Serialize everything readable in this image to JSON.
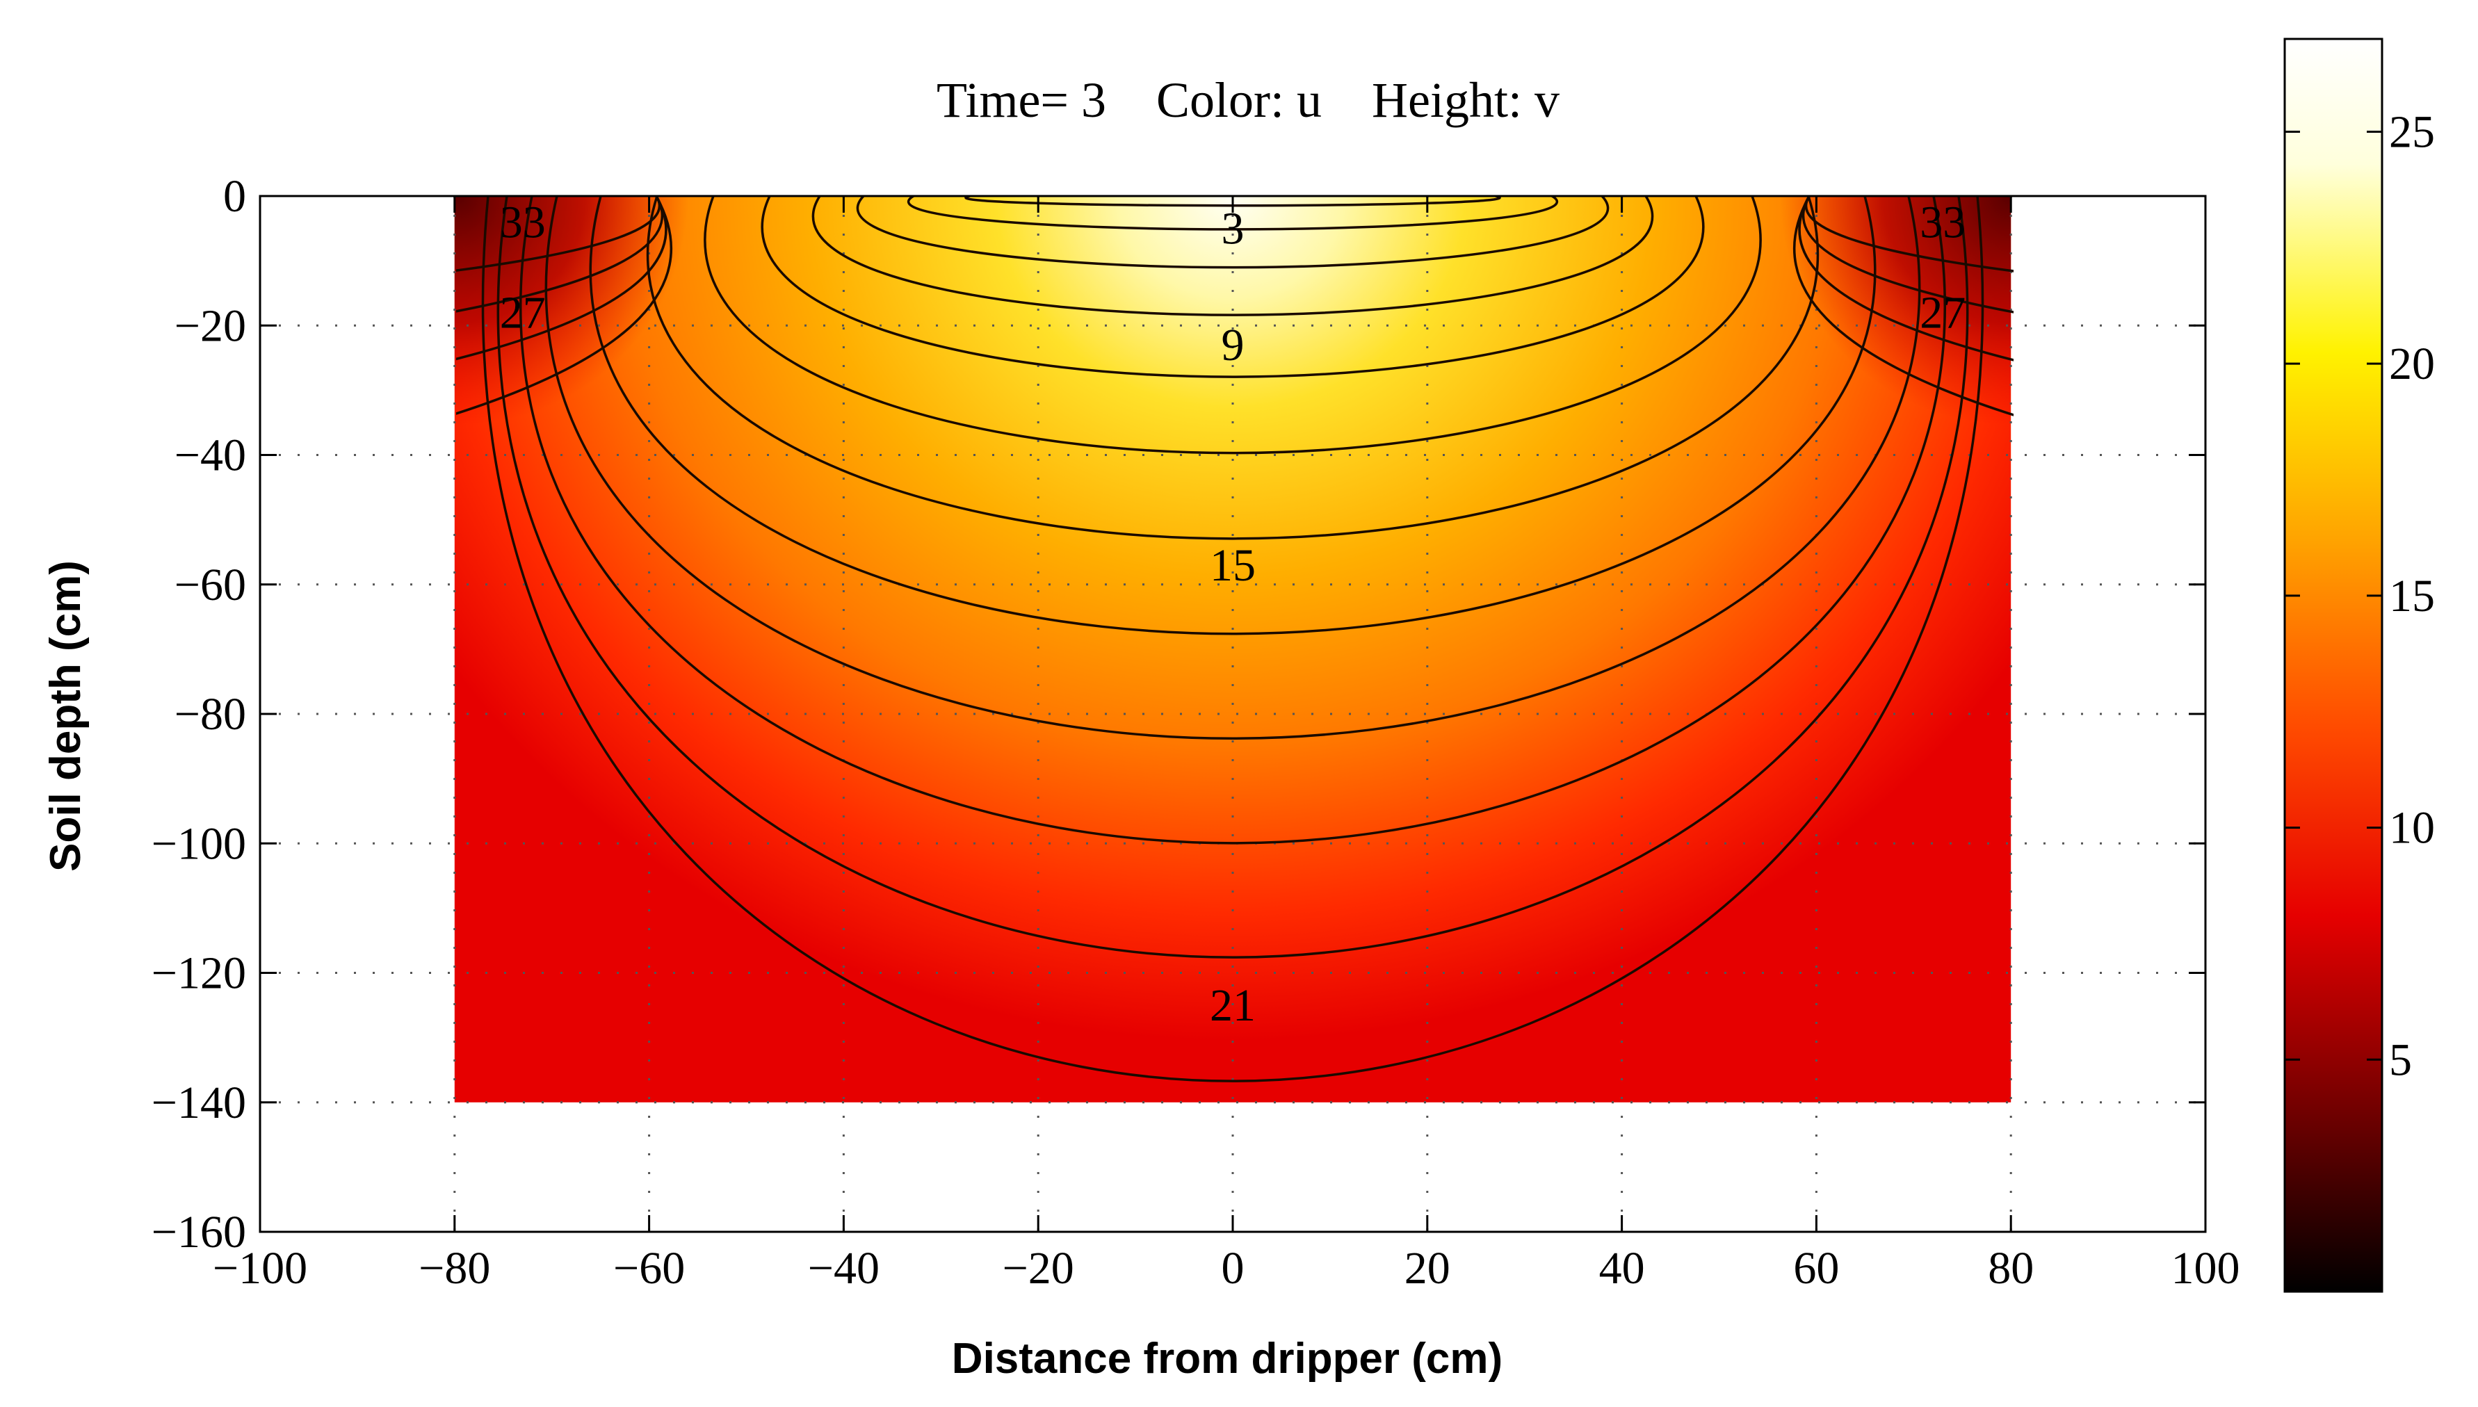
{
  "chart_data": {
    "type": "heatmap",
    "title": "Time= 3    Color: u    Height: v",
    "xlabel": "Distance from dripper (cm)",
    "ylabel": "Soil depth (cm)",
    "xlim": [
      -100,
      100
    ],
    "ylim": [
      -160,
      0
    ],
    "x_ticks": [
      "−100",
      "−80",
      "−60",
      "−40",
      "−20",
      "0",
      "20",
      "40",
      "60",
      "80",
      "100"
    ],
    "y_ticks": [
      "0",
      "−20",
      "−40",
      "−60",
      "−80",
      "−100",
      "−120",
      "−140",
      "−160"
    ],
    "grid": "dotted",
    "domain_x": [
      -80,
      80
    ],
    "domain_y": [
      -140,
      0
    ],
    "colormap": "hot",
    "colorbar": {
      "range": [
        0,
        27
      ],
      "ticks": [
        "5",
        "10",
        "15",
        "20",
        "25"
      ],
      "colors": [
        "#000000",
        "#6e0000",
        "#e60000",
        "#ff4b00",
        "#ffa300",
        "#fff200",
        "#ffffdc",
        "#ffffff"
      ]
    },
    "contour_labels": [
      {
        "text": "3",
        "x": 0,
        "y": -5
      },
      {
        "text": "9",
        "x": 0,
        "y": -23
      },
      {
        "text": "15",
        "x": 0,
        "y": -57
      },
      {
        "text": "21",
        "x": 0,
        "y": -125
      },
      {
        "text": "27",
        "x": -73,
        "y": -18
      },
      {
        "text": "27",
        "x": 73,
        "y": -18
      },
      {
        "text": "33",
        "x": -73,
        "y": -4
      },
      {
        "text": "33",
        "x": 73,
        "y": -4
      }
    ]
  }
}
